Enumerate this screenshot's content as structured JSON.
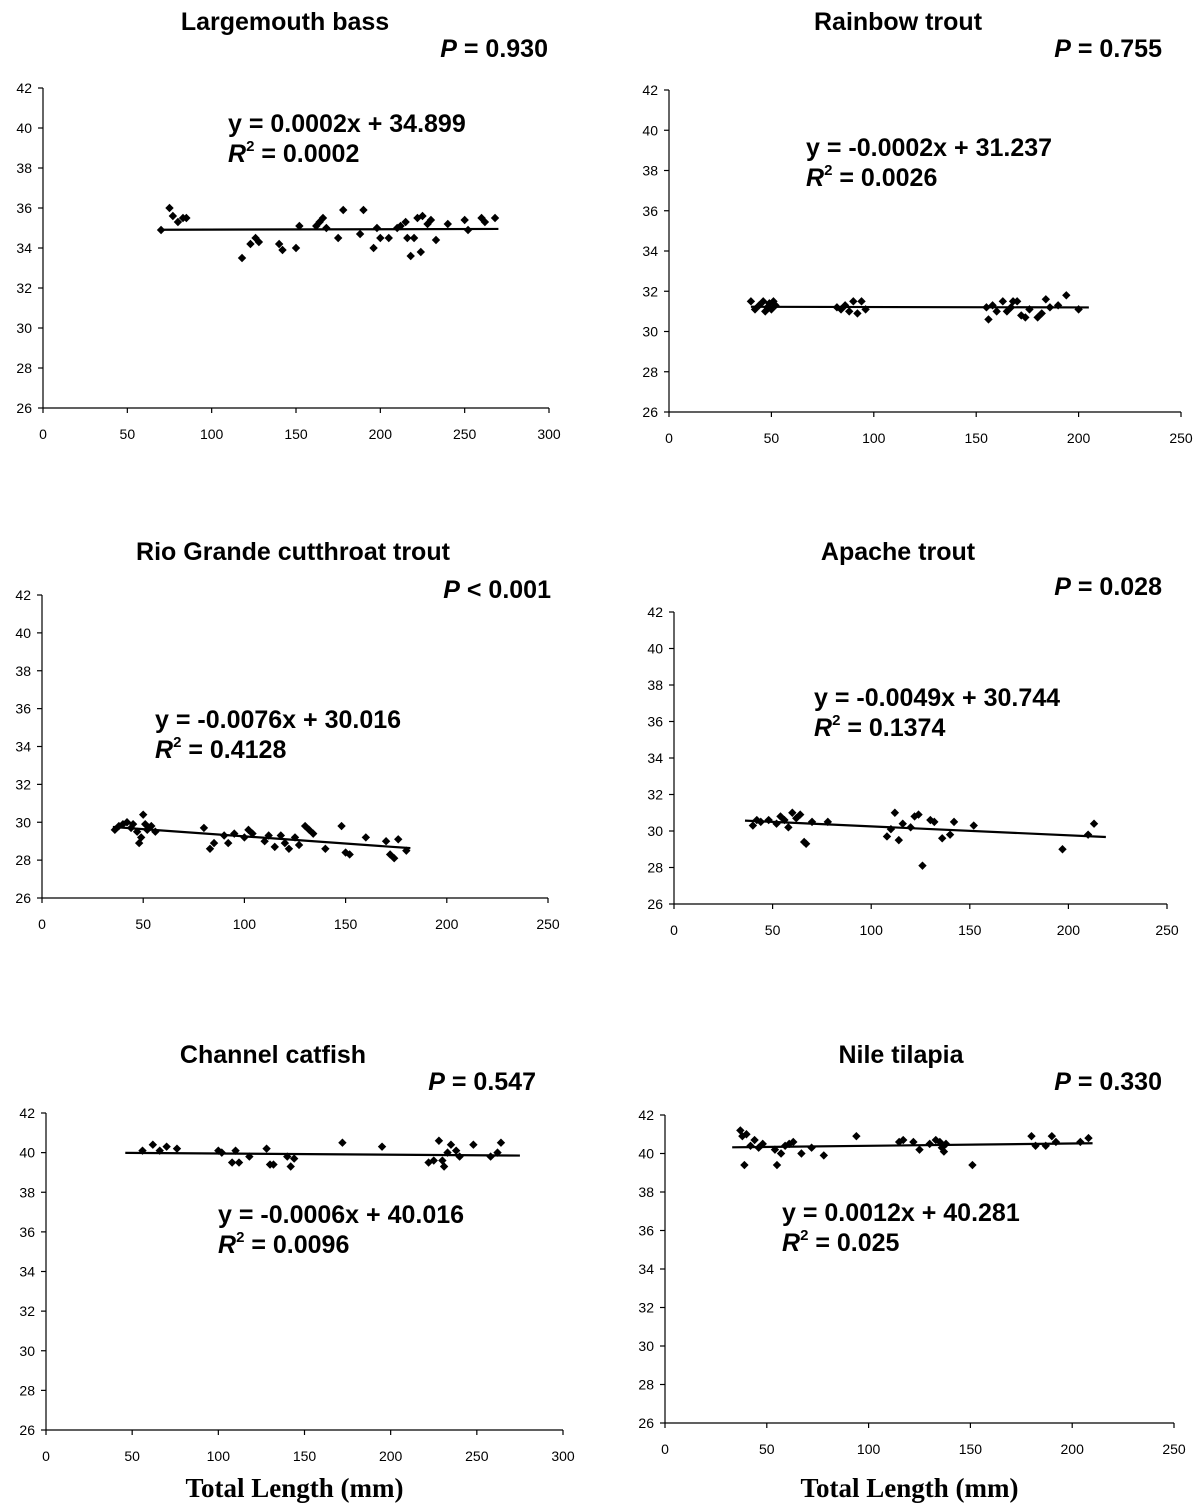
{
  "chart_data": [
    {
      "type": "scatter",
      "title": "Largemouth bass",
      "p_label": "P",
      "p_value": " = 0.930",
      "equation": "y = 0.0002x + 34.899",
      "r2_value": " = 0.0002",
      "xlim": [
        0,
        300
      ],
      "ylim": [
        26,
        42
      ],
      "xticks": [
        0,
        50,
        100,
        150,
        200,
        250,
        300
      ],
      "yticks": [
        26,
        28,
        30,
        32,
        34,
        36,
        38,
        40,
        42
      ],
      "xlabel": "",
      "trendline": {
        "slope": 0.0002,
        "intercept": 34.899,
        "x_range": [
          70,
          270
        ]
      },
      "points": [
        [
          70,
          34.9
        ],
        [
          75,
          36
        ],
        [
          77,
          35.6
        ],
        [
          80,
          35.3
        ],
        [
          83,
          35.5
        ],
        [
          85,
          35.5
        ],
        [
          118,
          33.5
        ],
        [
          123,
          34.2
        ],
        [
          126,
          34.5
        ],
        [
          128,
          34.3
        ],
        [
          140,
          34.2
        ],
        [
          142,
          33.9
        ],
        [
          150,
          34
        ],
        [
          152,
          35.1
        ],
        [
          162,
          35.1
        ],
        [
          164,
          35.3
        ],
        [
          166,
          35.5
        ],
        [
          168,
          35
        ],
        [
          175,
          34.5
        ],
        [
          178,
          35.9
        ],
        [
          188,
          34.7
        ],
        [
          190,
          35.9
        ],
        [
          196,
          34
        ],
        [
          198,
          35
        ],
        [
          200,
          34.5
        ],
        [
          205,
          34.5
        ],
        [
          210,
          35
        ],
        [
          212,
          35.1
        ],
        [
          215,
          35.3
        ],
        [
          216,
          34.5
        ],
        [
          218,
          33.6
        ],
        [
          220,
          34.5
        ],
        [
          222,
          35.5
        ],
        [
          224,
          33.8
        ],
        [
          225,
          35.6
        ],
        [
          228,
          35.2
        ],
        [
          230,
          35.4
        ],
        [
          233,
          34.4
        ],
        [
          240,
          35.2
        ],
        [
          250,
          35.4
        ],
        [
          252,
          34.9
        ],
        [
          260,
          35.5
        ],
        [
          262,
          35.3
        ],
        [
          268,
          35.5
        ]
      ]
    },
    {
      "type": "scatter",
      "title": "Rainbow trout",
      "p_label": "P",
      "p_value": " = 0.755",
      "equation": "y = -0.0002x + 31.237",
      "r2_value": " = 0.0026",
      "xlim": [
        0,
        250
      ],
      "ylim": [
        26,
        42
      ],
      "xticks": [
        0,
        50,
        100,
        150,
        200,
        250
      ],
      "yticks": [
        26,
        28,
        30,
        32,
        34,
        36,
        38,
        40,
        42
      ],
      "xlabel": "",
      "trendline": {
        "slope": -0.0002,
        "intercept": 31.237,
        "x_range": [
          40,
          205
        ]
      },
      "points": [
        [
          40,
          31.5
        ],
        [
          42,
          31.1
        ],
        [
          44,
          31.3
        ],
        [
          46,
          31.5
        ],
        [
          47,
          31
        ],
        [
          48,
          31.2
        ],
        [
          49,
          31.4
        ],
        [
          50,
          31.1
        ],
        [
          51,
          31.5
        ],
        [
          52,
          31.3
        ],
        [
          82,
          31.2
        ],
        [
          84,
          31.1
        ],
        [
          86,
          31.3
        ],
        [
          88,
          31
        ],
        [
          90,
          31.5
        ],
        [
          92,
          30.9
        ],
        [
          94,
          31.5
        ],
        [
          96,
          31.1
        ],
        [
          155,
          31.2
        ],
        [
          156,
          30.6
        ],
        [
          158,
          31.3
        ],
        [
          160,
          31
        ],
        [
          163,
          31.5
        ],
        [
          165,
          31
        ],
        [
          167,
          31.2
        ],
        [
          168,
          31.5
        ],
        [
          170,
          31.5
        ],
        [
          172,
          30.8
        ],
        [
          174,
          30.7
        ],
        [
          176,
          31.1
        ],
        [
          180,
          30.7
        ],
        [
          182,
          30.9
        ],
        [
          184,
          31.6
        ],
        [
          186,
          31.2
        ],
        [
          190,
          31.3
        ],
        [
          194,
          31.8
        ],
        [
          200,
          31.1
        ]
      ]
    },
    {
      "type": "scatter",
      "title": "Rio Grande cutthroat trout",
      "p_label": "P",
      "p_value": " < 0.001",
      "equation": "y = -0.0076x + 30.016",
      "r2_value": " = 0.4128",
      "xlim": [
        0,
        250
      ],
      "ylim": [
        26,
        42
      ],
      "xticks": [
        0,
        50,
        100,
        150,
        200,
        250
      ],
      "yticks": [
        26,
        28,
        30,
        32,
        34,
        36,
        38,
        40,
        42
      ],
      "xlabel": "",
      "trendline": {
        "slope": -0.0076,
        "intercept": 30.016,
        "x_range": [
          35,
          182
        ]
      },
      "points": [
        [
          36,
          29.6
        ],
        [
          38,
          29.8
        ],
        [
          40,
          29.9
        ],
        [
          42,
          30
        ],
        [
          44,
          29.7
        ],
        [
          45,
          29.9
        ],
        [
          47,
          29.5
        ],
        [
          48,
          28.9
        ],
        [
          49,
          29.2
        ],
        [
          50,
          30.4
        ],
        [
          51,
          29.9
        ],
        [
          52,
          29.6
        ],
        [
          54,
          29.8
        ],
        [
          56,
          29.5
        ],
        [
          80,
          29.7
        ],
        [
          83,
          28.6
        ],
        [
          85,
          28.9
        ],
        [
          90,
          29.3
        ],
        [
          92,
          28.9
        ],
        [
          95,
          29.4
        ],
        [
          100,
          29.2
        ],
        [
          102,
          29.6
        ],
        [
          104,
          29.4
        ],
        [
          110,
          29
        ],
        [
          112,
          29.3
        ],
        [
          115,
          28.7
        ],
        [
          118,
          29.3
        ],
        [
          120,
          28.9
        ],
        [
          122,
          28.6
        ],
        [
          125,
          29.2
        ],
        [
          127,
          28.8
        ],
        [
          130,
          29.8
        ],
        [
          132,
          29.6
        ],
        [
          134,
          29.4
        ],
        [
          140,
          28.6
        ],
        [
          148,
          29.8
        ],
        [
          150,
          28.4
        ],
        [
          152,
          28.3
        ],
        [
          160,
          29.2
        ],
        [
          170,
          29
        ],
        [
          172,
          28.3
        ],
        [
          174,
          28.1
        ],
        [
          176,
          29.1
        ],
        [
          180,
          28.5
        ]
      ]
    },
    {
      "type": "scatter",
      "title": "Apache trout",
      "p_label": "P",
      "p_value": " = 0.028",
      "equation": "y = -0.0049x + 30.744",
      "r2_value": " = 0.1374",
      "xlim": [
        0,
        250
      ],
      "ylim": [
        26,
        42
      ],
      "xticks": [
        0,
        50,
        100,
        150,
        200,
        250
      ],
      "yticks": [
        26,
        28,
        30,
        32,
        34,
        36,
        38,
        40,
        42
      ],
      "xlabel": "",
      "trendline": {
        "slope": -0.0049,
        "intercept": 30.744,
        "x_range": [
          36,
          219
        ]
      },
      "points": [
        [
          40,
          30.3
        ],
        [
          42,
          30.6
        ],
        [
          44,
          30.5
        ],
        [
          48,
          30.6
        ],
        [
          52,
          30.4
        ],
        [
          54,
          30.8
        ],
        [
          56,
          30.6
        ],
        [
          58,
          30.2
        ],
        [
          60,
          31
        ],
        [
          62,
          30.7
        ],
        [
          64,
          30.9
        ],
        [
          66,
          29.4
        ],
        [
          67,
          29.3
        ],
        [
          70,
          30.5
        ],
        [
          78,
          30.5
        ],
        [
          108,
          29.7
        ],
        [
          110,
          30.1
        ],
        [
          112,
          31
        ],
        [
          114,
          29.5
        ],
        [
          116,
          30.4
        ],
        [
          120,
          30.2
        ],
        [
          122,
          30.8
        ],
        [
          124,
          30.9
        ],
        [
          126,
          28.1
        ],
        [
          130,
          30.6
        ],
        [
          132,
          30.5
        ],
        [
          136,
          29.6
        ],
        [
          140,
          29.8
        ],
        [
          142,
          30.5
        ],
        [
          152,
          30.3
        ],
        [
          197,
          29
        ],
        [
          210,
          29.8
        ],
        [
          213,
          30.4
        ]
      ]
    },
    {
      "type": "scatter",
      "title": "Channel catfish",
      "p_label": "P",
      "p_value": " = 0.547",
      "equation": "y = -0.0006x + 40.016",
      "r2_value": " = 0.0096",
      "xlim": [
        0,
        300
      ],
      "ylim": [
        26,
        42
      ],
      "xticks": [
        0,
        50,
        100,
        150,
        200,
        250,
        300
      ],
      "yticks": [
        26,
        28,
        30,
        32,
        34,
        36,
        38,
        40,
        42
      ],
      "xlabel": "Total Length (mm)",
      "trendline": {
        "slope": -0.0006,
        "intercept": 40.016,
        "x_range": [
          46,
          275
        ]
      },
      "points": [
        [
          56,
          40.1
        ],
        [
          62,
          40.4
        ],
        [
          66,
          40.1
        ],
        [
          70,
          40.3
        ],
        [
          76,
          40.2
        ],
        [
          100,
          40.1
        ],
        [
          102,
          40
        ],
        [
          108,
          39.5
        ],
        [
          110,
          40.1
        ],
        [
          112,
          39.5
        ],
        [
          118,
          39.8
        ],
        [
          128,
          40.2
        ],
        [
          130,
          39.4
        ],
        [
          132,
          39.4
        ],
        [
          140,
          39.8
        ],
        [
          142,
          39.3
        ],
        [
          144,
          39.7
        ],
        [
          172,
          40.5
        ],
        [
          195,
          40.3
        ],
        [
          222,
          39.5
        ],
        [
          225,
          39.6
        ],
        [
          228,
          40.6
        ],
        [
          230,
          39.6
        ],
        [
          231,
          39.3
        ],
        [
          233,
          40
        ],
        [
          235,
          40.4
        ],
        [
          238,
          40.1
        ],
        [
          240,
          39.8
        ],
        [
          248,
          40.4
        ],
        [
          258,
          39.8
        ],
        [
          262,
          40
        ],
        [
          264,
          40.5
        ]
      ]
    },
    {
      "type": "scatter",
      "title": "Nile tilapia",
      "p_label": "P",
      "p_value": " = 0.330",
      "equation": "y = 0.0012x + 40.281",
      "r2_value": " = 0.025",
      "xlim": [
        0,
        250
      ],
      "ylim": [
        26,
        42
      ],
      "xticks": [
        0,
        50,
        100,
        150,
        200,
        250
      ],
      "yticks": [
        26,
        28,
        30,
        32,
        34,
        36,
        38,
        40,
        42
      ],
      "xlabel": "Total Length (mm)",
      "trendline": {
        "slope": 0.0012,
        "intercept": 40.281,
        "x_range": [
          33,
          210
        ]
      },
      "points": [
        [
          37,
          41.2
        ],
        [
          38,
          40.9
        ],
        [
          39,
          39.4
        ],
        [
          40,
          41
        ],
        [
          42,
          40.4
        ],
        [
          44,
          40.7
        ],
        [
          46,
          40.3
        ],
        [
          48,
          40.5
        ],
        [
          54,
          40.2
        ],
        [
          55,
          39.4
        ],
        [
          57,
          40
        ],
        [
          59,
          40.4
        ],
        [
          61,
          40.5
        ],
        [
          63,
          40.6
        ],
        [
          67,
          40
        ],
        [
          72,
          40.3
        ],
        [
          78,
          39.9
        ],
        [
          94,
          40.9
        ],
        [
          115,
          40.6
        ],
        [
          117,
          40.7
        ],
        [
          122,
          40.6
        ],
        [
          125,
          40.2
        ],
        [
          130,
          40.5
        ],
        [
          133,
          40.7
        ],
        [
          135,
          40.6
        ],
        [
          136,
          40.3
        ],
        [
          137,
          40.1
        ],
        [
          138,
          40.5
        ],
        [
          151,
          39.4
        ],
        [
          180,
          40.9
        ],
        [
          182,
          40.4
        ],
        [
          187,
          40.4
        ],
        [
          190,
          40.9
        ],
        [
          192,
          40.6
        ],
        [
          204,
          40.6
        ],
        [
          208,
          40.8
        ]
      ]
    }
  ]
}
